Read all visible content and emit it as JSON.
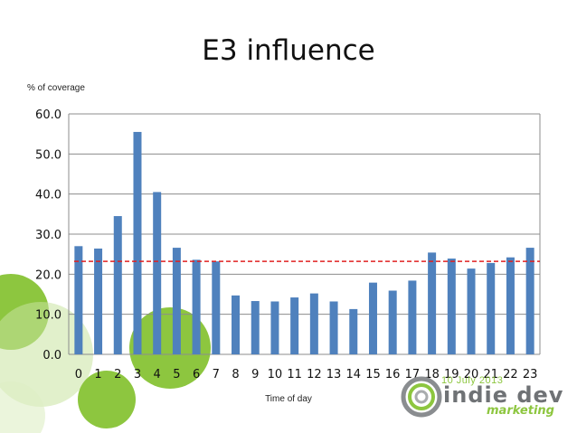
{
  "slide": {
    "title": "E3 influence",
    "y_axis_caption": "% of coverage",
    "x_axis_caption": "Time of day",
    "logo": {
      "date": "10 July 2013",
      "name": "indie dev",
      "tagline": "marketing"
    }
  },
  "colors": {
    "bar": "#4f81bd",
    "reference_line": "#e02020",
    "grid": "#8c8c8c",
    "accent_green": "#8dc63f"
  },
  "chart_data": {
    "type": "bar",
    "title": "E3 influence",
    "xlabel": "Time of day",
    "ylabel": "% of coverage",
    "categories": [
      "0",
      "1",
      "2",
      "3",
      "4",
      "5",
      "6",
      "7",
      "8",
      "9",
      "10",
      "11",
      "12",
      "13",
      "14",
      "15",
      "16",
      "17",
      "18",
      "19",
      "20",
      "21",
      "22",
      "23"
    ],
    "series": [
      {
        "values": [
          27.0,
          26.4,
          34.5,
          55.5,
          40.5,
          26.6,
          23.6,
          23.2,
          14.7,
          13.3,
          13.2,
          14.2,
          15.2,
          13.2,
          11.3,
          17.9,
          15.9,
          18.4,
          25.4,
          23.9,
          21.4,
          22.8,
          24.2,
          26.6
        ]
      }
    ],
    "reference_line": 23.2,
    "ylim": [
      0,
      60
    ],
    "yticks": [
      "0.0",
      "10.0",
      "20.0",
      "30.0",
      "40.0",
      "50.0",
      "60.0"
    ],
    "grid": true,
    "legend": "none"
  }
}
